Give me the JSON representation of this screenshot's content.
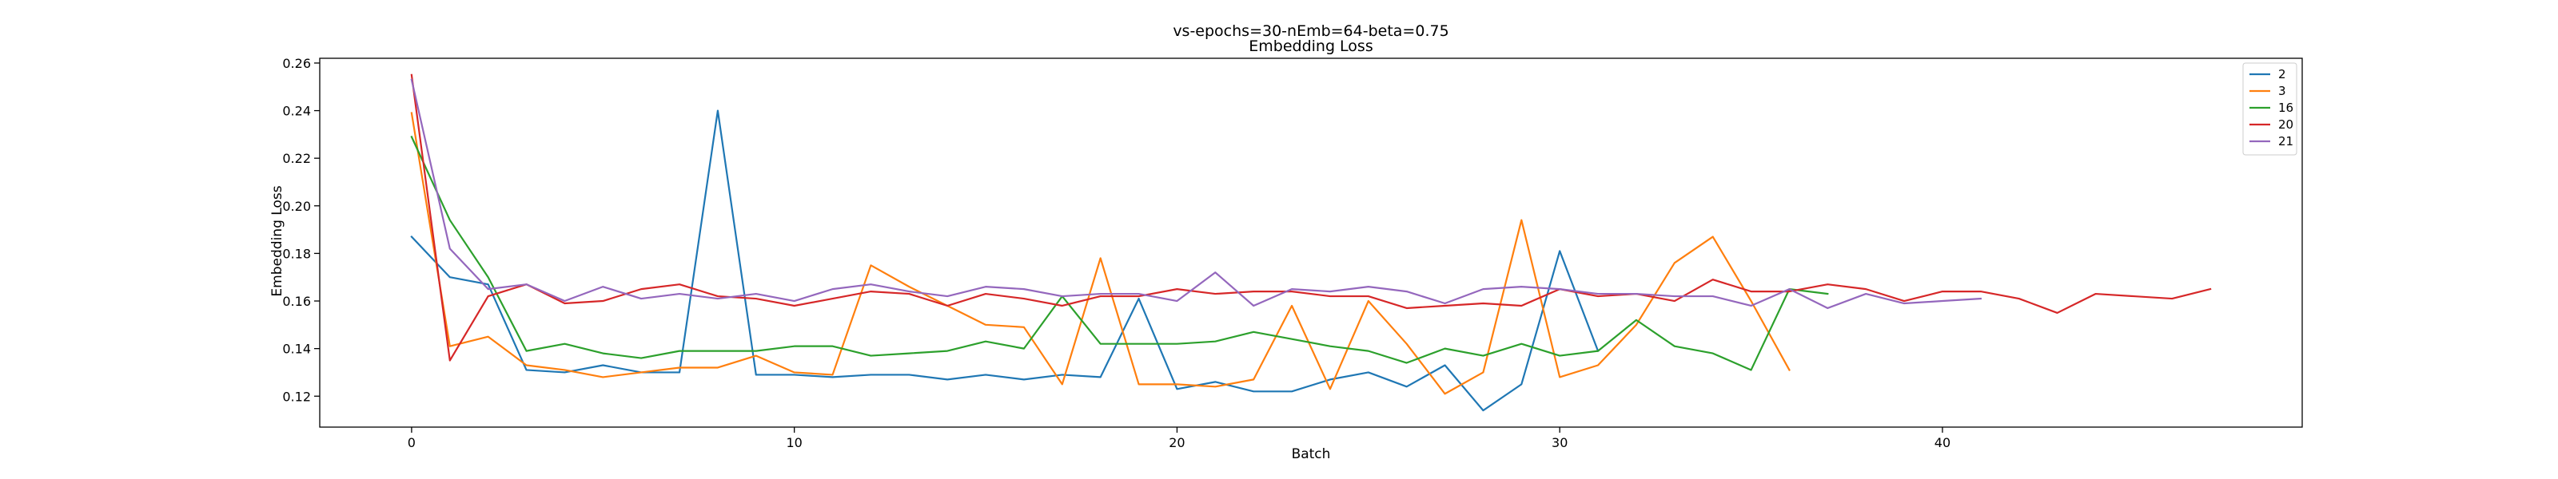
{
  "chart_data": {
    "type": "line",
    "title": "vs-epochs=30-nEmb=64-beta=0.75",
    "subtitle": "Embedding Loss",
    "xlabel": "Batch",
    "ylabel": "Embedding Loss",
    "xlim": [
      -2.4,
      49.4
    ],
    "ylim": [
      0.107,
      0.262
    ],
    "xticks": [
      0,
      10,
      20,
      30,
      40
    ],
    "yticks": [
      0.12,
      0.14,
      0.16,
      0.18,
      0.2,
      0.22,
      0.24,
      0.26
    ],
    "ytick_labels": [
      "0.12",
      "0.14",
      "0.16",
      "0.18",
      "0.20",
      "0.22",
      "0.24",
      "0.26"
    ],
    "grid": false,
    "legend_position": "top-right",
    "series": [
      {
        "name": "2",
        "color": "#1f77b4",
        "values": [
          0.187,
          0.17,
          0.167,
          0.131,
          0.13,
          0.133,
          0.13,
          0.13,
          0.24,
          0.129,
          0.129,
          0.128,
          0.129,
          0.129,
          0.127,
          0.129,
          0.127,
          0.129,
          0.128,
          0.161,
          0.123,
          0.126,
          0.122,
          0.122,
          0.127,
          0.13,
          0.124,
          0.133,
          0.114,
          0.125,
          0.181,
          0.139
        ]
      },
      {
        "name": "3",
        "color": "#ff7f0e",
        "values": [
          0.239,
          0.141,
          0.145,
          0.133,
          0.131,
          0.128,
          0.13,
          0.132,
          0.132,
          0.137,
          0.13,
          0.129,
          0.175,
          0.166,
          0.158,
          0.15,
          0.149,
          0.125,
          0.178,
          0.125,
          0.125,
          0.124,
          0.127,
          0.158,
          0.123,
          0.16,
          0.142,
          0.121,
          0.13,
          0.194,
          0.128,
          0.133,
          0.15,
          0.176,
          0.187,
          0.16,
          0.131
        ]
      },
      {
        "name": "16",
        "color": "#2ca02c",
        "values": [
          0.229,
          0.194,
          0.17,
          0.139,
          0.142,
          0.138,
          0.136,
          0.139,
          0.139,
          0.139,
          0.141,
          0.141,
          0.137,
          0.138,
          0.139,
          0.143,
          0.14,
          0.162,
          0.142,
          0.142,
          0.142,
          0.143,
          0.147,
          0.144,
          0.141,
          0.139,
          0.134,
          0.14,
          0.137,
          0.142,
          0.137,
          0.139,
          0.152,
          0.141,
          0.138,
          0.131,
          0.165,
          0.163
        ]
      },
      {
        "name": "20",
        "color": "#d62728",
        "values": [
          0.255,
          0.135,
          0.162,
          0.167,
          0.159,
          0.16,
          0.165,
          0.167,
          0.162,
          0.161,
          0.158,
          0.161,
          0.164,
          0.163,
          0.158,
          0.163,
          0.161,
          0.158,
          0.162,
          0.162,
          0.165,
          0.163,
          0.164,
          0.164,
          0.162,
          0.162,
          0.157,
          0.158,
          0.159,
          0.158,
          0.165,
          0.162,
          0.163,
          0.16,
          0.169,
          0.164,
          0.164,
          0.167,
          0.165,
          0.16,
          0.164,
          0.164,
          0.161,
          0.155,
          0.163,
          0.162,
          0.161,
          0.165
        ]
      },
      {
        "name": "21",
        "color": "#9467bd",
        "values": [
          0.253,
          0.182,
          0.165,
          0.167,
          0.16,
          0.166,
          0.161,
          0.163,
          0.161,
          0.163,
          0.16,
          0.165,
          0.167,
          0.164,
          0.162,
          0.166,
          0.165,
          0.162,
          0.163,
          0.163,
          0.16,
          0.172,
          0.158,
          0.165,
          0.164,
          0.166,
          0.164,
          0.159,
          0.165,
          0.166,
          0.165,
          0.163,
          0.163,
          0.162,
          0.162,
          0.158,
          0.165,
          0.157,
          0.163,
          0.159,
          0.16,
          0.161
        ]
      }
    ]
  }
}
